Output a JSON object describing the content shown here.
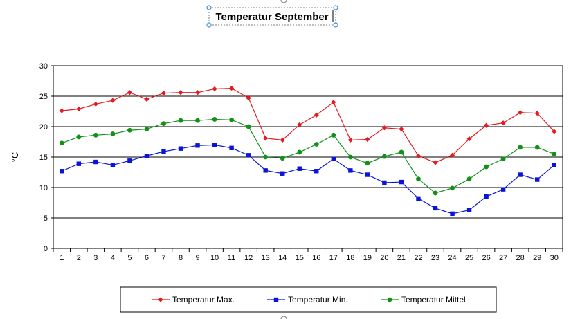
{
  "chart_data": {
    "type": "line",
    "title": "Temperatur September",
    "xlabel": "",
    "ylabel": "°C",
    "ylim": [
      0,
      30
    ],
    "yticks": [
      0,
      5,
      10,
      15,
      20,
      25,
      30
    ],
    "grid": true,
    "legend_position": "bottom",
    "categories": [
      "1",
      "2",
      "3",
      "4",
      "5",
      "6",
      "7",
      "8",
      "9",
      "10",
      "11",
      "12",
      "13",
      "14",
      "15",
      "16",
      "17",
      "18",
      "19",
      "20",
      "21",
      "22",
      "23",
      "24",
      "25",
      "26",
      "27",
      "28",
      "29",
      "30"
    ],
    "series": [
      {
        "name": "Temperatur Max.",
        "color": "#e8191e",
        "marker": "diamond",
        "values": [
          22.6,
          22.9,
          23.7,
          24.3,
          25.6,
          24.5,
          25.5,
          25.6,
          25.6,
          26.2,
          26.3,
          24.7,
          18.1,
          17.8,
          20.3,
          21.9,
          24.0,
          17.8,
          17.9,
          19.8,
          19.6,
          15.2,
          14.1,
          15.3,
          18.0,
          20.2,
          20.6,
          22.3,
          22.2,
          19.2
        ]
      },
      {
        "name": "Temperatur Min.",
        "color": "#0a14d6",
        "marker": "square",
        "values": [
          12.7,
          13.9,
          14.2,
          13.7,
          14.4,
          15.2,
          15.9,
          16.4,
          16.9,
          17.0,
          16.5,
          15.3,
          12.8,
          12.3,
          13.1,
          12.7,
          14.7,
          12.8,
          12.1,
          10.8,
          10.9,
          8.2,
          6.6,
          5.7,
          6.3,
          8.5,
          9.7,
          12.1,
          11.3,
          13.7
        ]
      },
      {
        "name": "Temperatur Mittel",
        "color": "#119116",
        "marker": "circle",
        "values": [
          17.3,
          18.3,
          18.6,
          18.8,
          19.4,
          19.6,
          20.5,
          21.0,
          21.0,
          21.2,
          21.1,
          20.0,
          15.0,
          14.8,
          15.8,
          17.1,
          18.6,
          15.0,
          14.0,
          15.1,
          15.8,
          11.4,
          9.1,
          9.9,
          11.4,
          13.4,
          14.7,
          16.6,
          16.6,
          15.5
        ]
      }
    ]
  }
}
